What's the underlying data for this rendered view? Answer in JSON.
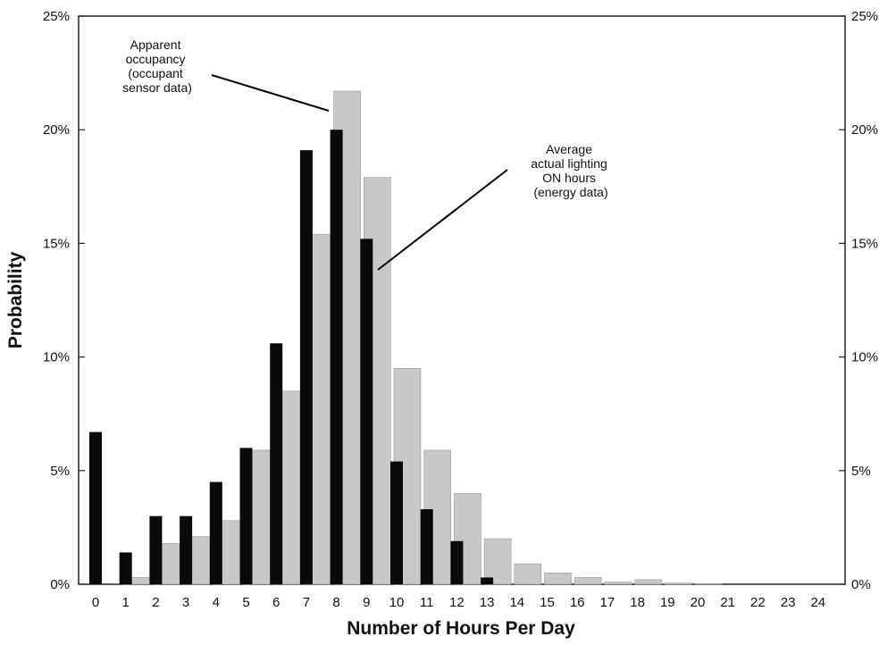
{
  "chart_data": {
    "type": "bar",
    "xlabel": "Number of Hours Per Day",
    "ylabel": "Probability",
    "ylim": [
      0,
      25
    ],
    "y_ticks": [
      "0%",
      "5%",
      "10%",
      "15%",
      "20%",
      "25%"
    ],
    "y_tick_values": [
      0,
      5,
      10,
      15,
      20,
      25
    ],
    "categories": [
      "0",
      "1",
      "2",
      "3",
      "4",
      "5",
      "6",
      "7",
      "8",
      "9",
      "10",
      "11",
      "12",
      "13",
      "14",
      "15",
      "16",
      "17",
      "18",
      "19",
      "20",
      "21",
      "22",
      "23",
      "24"
    ],
    "series": [
      {
        "values": [
          0,
          0.3,
          1.8,
          2.1,
          2.8,
          5.9,
          8.5,
          15.4,
          21.7,
          17.9,
          9.5,
          5.9,
          4.0,
          2.0,
          0.9,
          0.5,
          0.3,
          0.1,
          0.2,
          0.05,
          0.03,
          0,
          0,
          0,
          0
        ],
        "color": "#c8c8c8"
      },
      {
        "values": [
          6.7,
          1.4,
          3.0,
          3.0,
          4.5,
          6.0,
          10.6,
          19.1,
          20.0,
          15.2,
          5.4,
          3.3,
          1.9,
          0.3,
          0,
          0,
          0,
          0,
          0,
          0,
          0,
          0,
          0,
          0,
          0
        ],
        "color": "#0a0a0a"
      }
    ],
    "annotations": [
      {
        "lines": [
          "Apparent",
          "occupancy",
          "(occupant",
          "sensor data)"
        ]
      },
      {
        "lines": [
          "Average",
          "actual lighting",
          "ON hours",
          "(energy data)"
        ]
      }
    ],
    "grid": false,
    "right_axis": true
  }
}
